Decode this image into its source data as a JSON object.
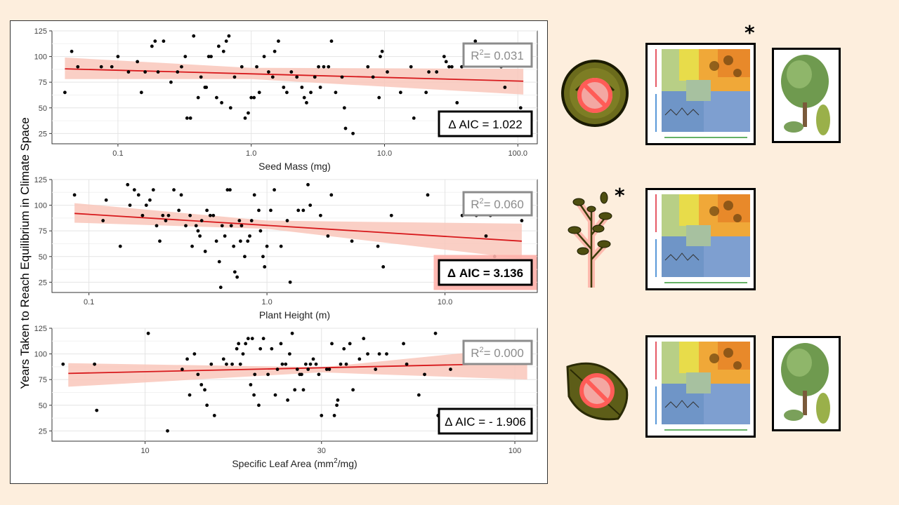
{
  "y_axis_label": "Years Taken to Reach Equilibrium in Climate Space",
  "colors": {
    "fit_line": "#d7191c",
    "ci_band": "#f9c7bb",
    "points": "#000000",
    "background": "#fdeedd"
  },
  "chart_data": [
    {
      "type": "scatter",
      "xlabel": "Seed Mass (mg)",
      "xlabel_sup": "",
      "xlabel_tail": "",
      "xscale": "log",
      "xlim": [
        0.032,
        140
      ],
      "ylim": [
        15,
        125
      ],
      "x_ticks": [
        0.1,
        1.0,
        10.0,
        100.0
      ],
      "x_tick_labels": [
        "0.1",
        "1.0",
        "10.0",
        "100.0"
      ],
      "y_ticks": [
        25,
        50,
        75,
        100,
        125
      ],
      "y_tick_labels": [
        "25",
        "50",
        "75",
        "100",
        "125"
      ],
      "fit": {
        "x0": 0.04,
        "y0": 88,
        "x1": 110,
        "y1": 76
      },
      "ci": [
        [
          0.04,
          99,
          78
        ],
        [
          1.0,
          89,
          78
        ],
        [
          110,
          88,
          63
        ]
      ],
      "r2_label": "R",
      "r2_text": "= 0.031",
      "aic_text": "Δ AIC = 1.022",
      "aic_highlight": false,
      "points": [
        [
          0.04,
          65
        ],
        [
          0.045,
          105
        ],
        [
          0.05,
          90
        ],
        [
          0.075,
          90
        ],
        [
          0.09,
          90
        ],
        [
          0.1,
          100
        ],
        [
          0.12,
          85
        ],
        [
          0.14,
          95
        ],
        [
          0.15,
          65
        ],
        [
          0.16,
          85
        ],
        [
          0.18,
          110
        ],
        [
          0.19,
          115
        ],
        [
          0.2,
          85
        ],
        [
          0.22,
          115
        ],
        [
          0.25,
          75
        ],
        [
          0.28,
          85
        ],
        [
          0.3,
          90
        ],
        [
          0.32,
          100
        ],
        [
          0.33,
          40
        ],
        [
          0.35,
          40
        ],
        [
          0.37,
          120
        ],
        [
          0.4,
          60
        ],
        [
          0.42,
          80
        ],
        [
          0.45,
          70
        ],
        [
          0.46,
          70
        ],
        [
          0.48,
          100
        ],
        [
          0.5,
          100
        ],
        [
          0.55,
          60
        ],
        [
          0.57,
          110
        ],
        [
          0.6,
          55
        ],
        [
          0.62,
          105
        ],
        [
          0.65,
          115
        ],
        [
          0.68,
          120
        ],
        [
          0.7,
          50
        ],
        [
          0.75,
          80
        ],
        [
          0.85,
          90
        ],
        [
          0.9,
          40
        ],
        [
          0.95,
          45
        ],
        [
          1.0,
          60
        ],
        [
          1.05,
          60
        ],
        [
          1.1,
          90
        ],
        [
          1.15,
          65
        ],
        [
          1.25,
          100
        ],
        [
          1.35,
          85
        ],
        [
          1.45,
          80
        ],
        [
          1.5,
          105
        ],
        [
          1.6,
          115
        ],
        [
          1.75,
          70
        ],
        [
          1.85,
          65
        ],
        [
          2.0,
          85
        ],
        [
          2.2,
          80
        ],
        [
          2.4,
          70
        ],
        [
          2.5,
          60
        ],
        [
          2.6,
          55
        ],
        [
          2.8,
          65
        ],
        [
          3.0,
          80
        ],
        [
          3.2,
          90
        ],
        [
          3.3,
          70
        ],
        [
          3.5,
          90
        ],
        [
          3.8,
          90
        ],
        [
          4.0,
          115
        ],
        [
          4.3,
          65
        ],
        [
          4.8,
          80
        ],
        [
          5.0,
          50
        ],
        [
          5.1,
          30
        ],
        [
          5.8,
          25
        ],
        [
          7.5,
          90
        ],
        [
          8.2,
          80
        ],
        [
          9.1,
          60
        ],
        [
          9.3,
          100
        ],
        [
          9.6,
          105
        ],
        [
          10.5,
          85
        ],
        [
          13.2,
          65
        ],
        [
          15.8,
          90
        ],
        [
          16.6,
          40
        ],
        [
          20.5,
          65
        ],
        [
          21.5,
          85
        ],
        [
          24.6,
          85
        ],
        [
          28,
          100
        ],
        [
          29,
          95
        ],
        [
          30.5,
          90
        ],
        [
          32,
          90
        ],
        [
          35,
          55
        ],
        [
          38,
          90
        ],
        [
          42,
          100
        ],
        [
          48,
          115
        ],
        [
          75,
          90
        ],
        [
          80,
          70
        ],
        [
          100,
          110
        ],
        [
          105,
          50
        ]
      ]
    },
    {
      "type": "scatter",
      "xlabel": "Plant Height (m)",
      "xlabel_sup": "",
      "xlabel_tail": "",
      "xscale": "log",
      "xlim": [
        0.062,
        33
      ],
      "ylim": [
        15,
        125
      ],
      "x_ticks": [
        0.1,
        1.0,
        10.0
      ],
      "x_tick_labels": [
        "0.1",
        "1.0",
        "10.0"
      ],
      "y_ticks": [
        25,
        50,
        75,
        100,
        125
      ],
      "y_tick_labels": [
        "25",
        "50",
        "75",
        "100",
        "125"
      ],
      "fit": {
        "x0": 0.083,
        "y0": 92,
        "x1": 27,
        "y1": 65
      },
      "ci": [
        [
          0.083,
          102,
          83
        ],
        [
          1.0,
          85,
          77
        ],
        [
          27,
          82,
          48
        ]
      ],
      "r2_label": "R",
      "r2_text": "= 0.060",
      "aic_text": "Δ AIC = 3.136",
      "aic_highlight": true,
      "points": [
        [
          0.083,
          110
        ],
        [
          0.12,
          85
        ],
        [
          0.125,
          105
        ],
        [
          0.15,
          60
        ],
        [
          0.165,
          120
        ],
        [
          0.17,
          100
        ],
        [
          0.18,
          115
        ],
        [
          0.19,
          110
        ],
        [
          0.2,
          90
        ],
        [
          0.21,
          100
        ],
        [
          0.22,
          105
        ],
        [
          0.23,
          115
        ],
        [
          0.24,
          80
        ],
        [
          0.25,
          65
        ],
        [
          0.26,
          90
        ],
        [
          0.27,
          85
        ],
        [
          0.28,
          90
        ],
        [
          0.3,
          115
        ],
        [
          0.32,
          95
        ],
        [
          0.33,
          110
        ],
        [
          0.35,
          80
        ],
        [
          0.37,
          90
        ],
        [
          0.38,
          60
        ],
        [
          0.4,
          80
        ],
        [
          0.41,
          75
        ],
        [
          0.42,
          70
        ],
        [
          0.43,
          85
        ],
        [
          0.45,
          55
        ],
        [
          0.46,
          95
        ],
        [
          0.48,
          90
        ],
        [
          0.5,
          90
        ],
        [
          0.52,
          65
        ],
        [
          0.54,
          45
        ],
        [
          0.55,
          20
        ],
        [
          0.56,
          80
        ],
        [
          0.58,
          70
        ],
        [
          0.6,
          115
        ],
        [
          0.62,
          115
        ],
        [
          0.63,
          80
        ],
        [
          0.65,
          60
        ],
        [
          0.66,
          35
        ],
        [
          0.68,
          30
        ],
        [
          0.7,
          85
        ],
        [
          0.71,
          65
        ],
        [
          0.72,
          80
        ],
        [
          0.75,
          50
        ],
        [
          0.78,
          65
        ],
        [
          0.8,
          70
        ],
        [
          0.82,
          85
        ],
        [
          0.85,
          110
        ],
        [
          0.9,
          95
        ],
        [
          0.92,
          75
        ],
        [
          0.95,
          50
        ],
        [
          0.97,
          40
        ],
        [
          1.0,
          60
        ],
        [
          1.05,
          95
        ],
        [
          1.1,
          115
        ],
        [
          1.2,
          60
        ],
        [
          1.3,
          85
        ],
        [
          1.35,
          25
        ],
        [
          1.5,
          95
        ],
        [
          1.6,
          95
        ],
        [
          1.7,
          120
        ],
        [
          1.75,
          100
        ],
        [
          2.0,
          90
        ],
        [
          2.2,
          70
        ],
        [
          2.3,
          110
        ],
        [
          3.0,
          65
        ],
        [
          4.2,
          60
        ],
        [
          4.5,
          40
        ],
        [
          5.0,
          90
        ],
        [
          8.0,
          110
        ],
        [
          12.5,
          90
        ],
        [
          15,
          90
        ],
        [
          17,
          70
        ],
        [
          18,
          90
        ],
        [
          19,
          50
        ],
        [
          27,
          85
        ]
      ]
    },
    {
      "type": "scatter",
      "xlabel": "Specific Leaf Area (mm",
      "xlabel_sup": "2",
      "xlabel_tail": "/mg)",
      "xscale": "log",
      "xlim": [
        5.6,
        115
      ],
      "ylim": [
        15,
        125
      ],
      "x_ticks": [
        10,
        30,
        100
      ],
      "x_tick_labels": [
        "10",
        "30",
        "100"
      ],
      "y_ticks": [
        25,
        50,
        75,
        100,
        125
      ],
      "y_tick_labels": [
        "25",
        "50",
        "75",
        "100",
        "125"
      ],
      "fit": {
        "x0": 6.2,
        "y0": 81,
        "x1": 108,
        "y1": 91
      },
      "ci": [
        [
          6.2,
          91,
          68
        ],
        [
          30,
          87,
          82
        ],
        [
          108,
          107,
          75
        ]
      ],
      "r2_label": "R",
      "r2_text": "= 0.000",
      "aic_text": "Δ AIC = - 1.906",
      "aic_highlight": false,
      "points": [
        [
          6.0,
          90
        ],
        [
          7.3,
          90
        ],
        [
          7.4,
          45
        ],
        [
          10.2,
          120
        ],
        [
          11.5,
          25
        ],
        [
          12.6,
          85
        ],
        [
          13.0,
          95
        ],
        [
          13.2,
          60
        ],
        [
          13.6,
          100
        ],
        [
          13.9,
          80
        ],
        [
          14.2,
          70
        ],
        [
          14.5,
          65
        ],
        [
          14.7,
          50
        ],
        [
          15.1,
          90
        ],
        [
          15.4,
          40
        ],
        [
          16.3,
          95
        ],
        [
          16.6,
          90
        ],
        [
          17.2,
          90
        ],
        [
          17.7,
          105
        ],
        [
          17.9,
          110
        ],
        [
          18.1,
          90
        ],
        [
          18.4,
          100
        ],
        [
          18.7,
          110
        ],
        [
          19.0,
          115
        ],
        [
          19.3,
          70
        ],
        [
          19.5,
          115
        ],
        [
          19.7,
          60
        ],
        [
          19.8,
          80
        ],
        [
          20.3,
          50
        ],
        [
          20.5,
          105
        ],
        [
          20.9,
          115
        ],
        [
          21.5,
          80
        ],
        [
          22.0,
          105
        ],
        [
          22.5,
          60
        ],
        [
          22.8,
          85
        ],
        [
          23.3,
          110
        ],
        [
          23.5,
          90
        ],
        [
          24.0,
          90
        ],
        [
          24.3,
          55
        ],
        [
          24.6,
          100
        ],
        [
          25.0,
          120
        ],
        [
          25.4,
          65
        ],
        [
          25.8,
          85
        ],
        [
          26.2,
          80
        ],
        [
          26.5,
          80
        ],
        [
          26.8,
          65
        ],
        [
          27.2,
          90
        ],
        [
          27.6,
          85
        ],
        [
          28.0,
          90
        ],
        [
          28.5,
          95
        ],
        [
          29.0,
          90
        ],
        [
          29.5,
          80
        ],
        [
          30.0,
          40
        ],
        [
          31.0,
          85
        ],
        [
          31.5,
          85
        ],
        [
          32.0,
          110
        ],
        [
          32.5,
          40
        ],
        [
          33.0,
          50
        ],
        [
          33.2,
          55
        ],
        [
          33.8,
          90
        ],
        [
          34.5,
          105
        ],
        [
          35.0,
          90
        ],
        [
          35.8,
          110
        ],
        [
          36.5,
          65
        ],
        [
          38,
          95
        ],
        [
          39,
          115
        ],
        [
          40,
          100
        ],
        [
          42,
          85
        ],
        [
          43,
          100
        ],
        [
          45,
          100
        ],
        [
          50,
          110
        ],
        [
          51,
          90
        ],
        [
          55,
          60
        ],
        [
          57,
          80
        ],
        [
          61,
          120
        ],
        [
          62,
          40
        ],
        [
          67,
          85
        ],
        [
          107,
          95
        ]
      ]
    }
  ]
}
